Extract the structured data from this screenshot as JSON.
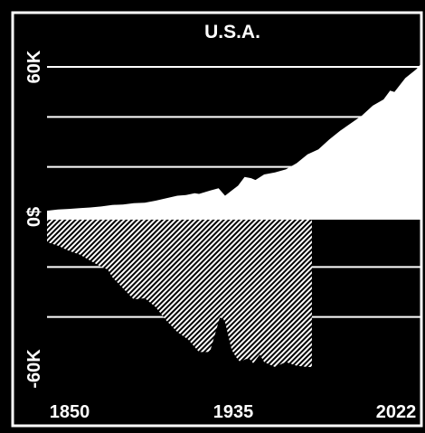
{
  "chart_data": {
    "type": "area",
    "title": "U.S.A.",
    "xlabel": "",
    "ylabel": "",
    "xlim": [
      1850,
      2022
    ],
    "ylim": [
      -60000,
      65000
    ],
    "x_ticks": [
      {
        "value": 1850,
        "label": "1850"
      },
      {
        "value": 1935,
        "label": "1935"
      },
      {
        "value": 2022,
        "label": "2022"
      }
    ],
    "y_ticks": [
      {
        "value": 60000,
        "label": "60K"
      },
      {
        "value": 0,
        "label": "0$"
      },
      {
        "value": -60000,
        "label": "-60K"
      }
    ],
    "grid_values": [
      60000,
      40000,
      20000,
      -20000,
      -40000
    ],
    "colors": {
      "background": "#000000",
      "foreground": "#ffffff"
    },
    "series": [
      {
        "style": "solid-white",
        "x": [
          1850,
          1855,
          1860,
          1865,
          1870,
          1875,
          1880,
          1885,
          1890,
          1895,
          1900,
          1905,
          1910,
          1914,
          1918,
          1920,
          1925,
          1929,
          1932,
          1935,
          1938,
          1941,
          1944,
          1946,
          1950,
          1955,
          1960,
          1965,
          1970,
          1975,
          1980,
          1985,
          1990,
          1995,
          2000,
          2005,
          2008,
          2010,
          2015,
          2020,
          2022
        ],
        "values": [
          2500,
          3000,
          3200,
          3500,
          3800,
          4200,
          4800,
          5000,
          5500,
          5700,
          6500,
          7500,
          8500,
          8800,
          9500,
          9200,
          10500,
          11500,
          8500,
          10500,
          12500,
          16000,
          15500,
          14800,
          17000,
          17800,
          19000,
          21500,
          25000,
          27000,
          31000,
          34500,
          37500,
          40500,
          44500,
          47000,
          50500,
          50000,
          55500,
          59000,
          61000
        ]
      },
      {
        "style": "hatched",
        "x": [
          1850,
          1855,
          1860,
          1865,
          1870,
          1875,
          1878,
          1880,
          1885,
          1890,
          1895,
          1900,
          1905,
          1910,
          1915,
          1920,
          1925,
          1930,
          1932,
          1935,
          1937,
          1939,
          1941,
          1943,
          1945,
          1948,
          1950,
          1955,
          1960,
          1965,
          1970,
          1972
        ],
        "values": [
          -10000,
          -11500,
          -13500,
          -15000,
          -17500,
          -20000,
          -21000,
          -24000,
          -28500,
          -33000,
          -32500,
          -36000,
          -41500,
          -46000,
          -49000,
          -54000,
          -54000,
          -39000,
          -42000,
          -53000,
          -56000,
          -58000,
          -57000,
          -56500,
          -58500,
          -55000,
          -58000,
          -60000,
          -58000,
          -59500,
          -60000,
          -60000
        ]
      }
    ]
  }
}
